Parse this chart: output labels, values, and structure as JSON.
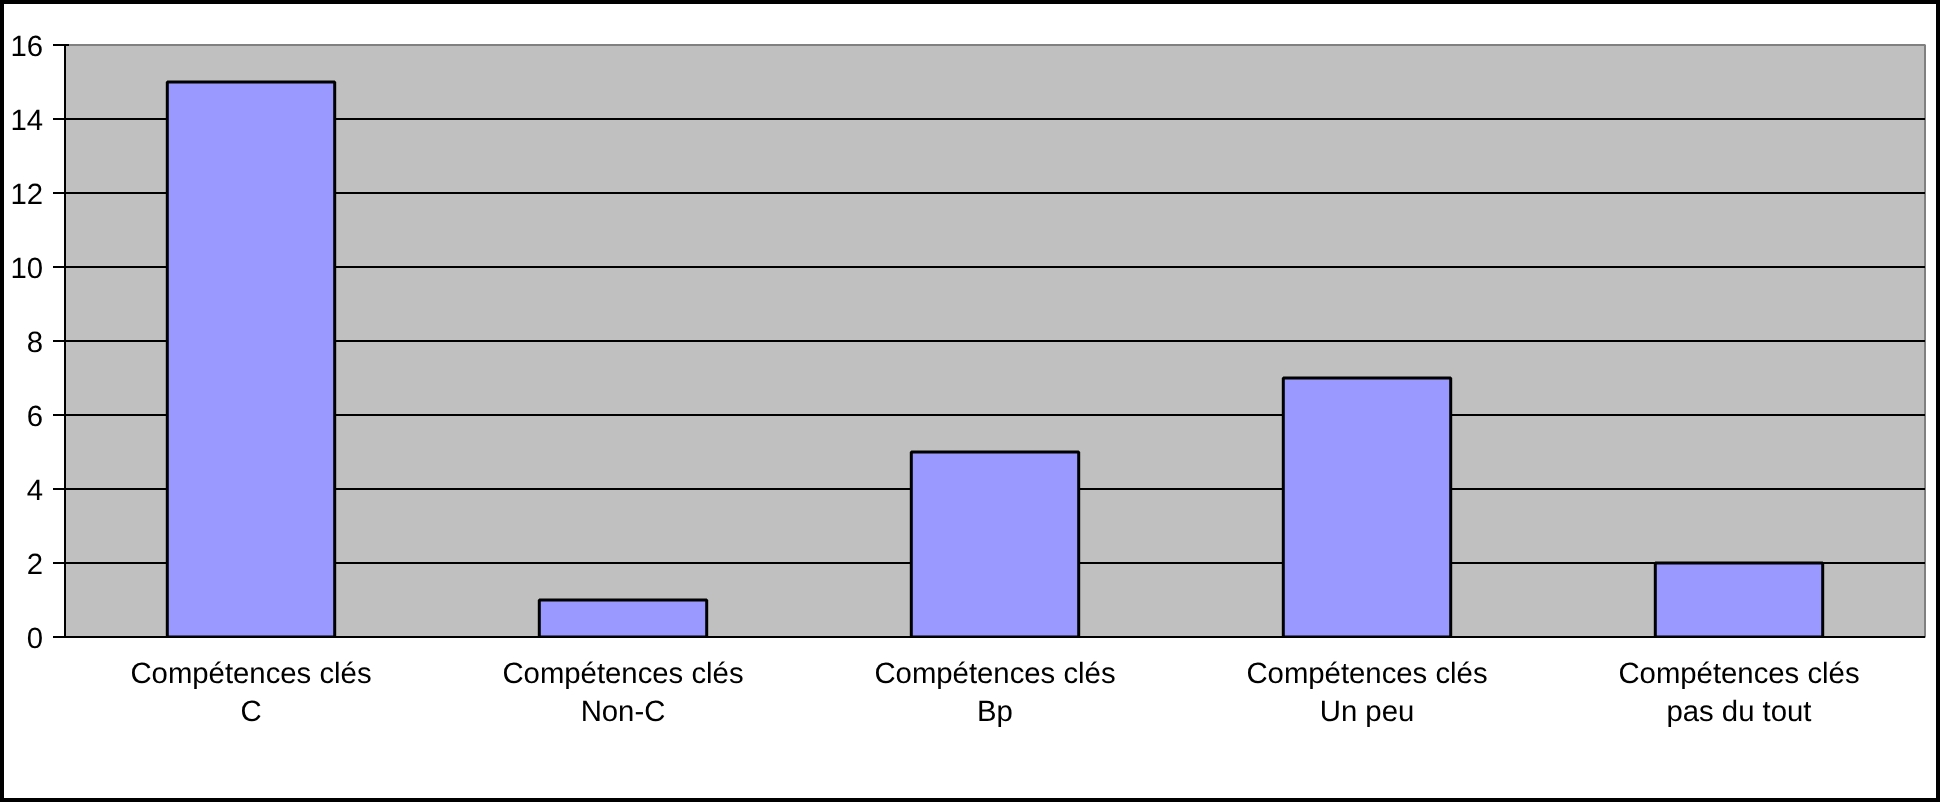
{
  "chart_data": {
    "type": "bar",
    "categories": [
      "Compétences clés\nC",
      "Compétences clés\nNon-C",
      "Compétences clés\nBp",
      "Compétences clés\nUn peu",
      "Compétences clés\npas du tout"
    ],
    "values": [
      15,
      1,
      5,
      7,
      2
    ],
    "color": "#9999ff",
    "ylim": [
      0,
      16
    ],
    "yticks": [
      0,
      2,
      4,
      6,
      8,
      10,
      12,
      14,
      16
    ],
    "grid": "y"
  }
}
